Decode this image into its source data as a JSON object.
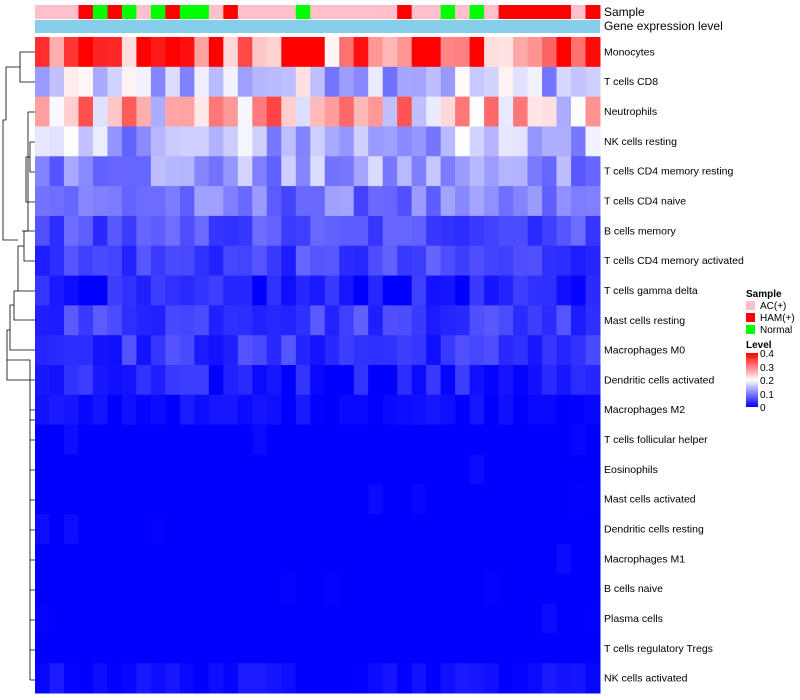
{
  "chart_data": {
    "type": "heatmap",
    "title": "",
    "annotations": {
      "sample_label": "Sample",
      "gene_label": "Gene expression level"
    },
    "sample_groups": [
      "AC",
      "AC",
      "AC",
      "HAM",
      "Normal",
      "HAM",
      "Normal",
      "AC",
      "Normal",
      "HAM",
      "Normal",
      "Normal",
      "AC",
      "HAM",
      "AC",
      "AC",
      "AC",
      "AC",
      "Normal",
      "AC",
      "AC",
      "AC",
      "AC",
      "AC",
      "AC",
      "HAM",
      "AC",
      "AC",
      "Normal",
      "AC",
      "Normal",
      "AC",
      "HAM",
      "HAM",
      "HAM",
      "HAM",
      "HAM",
      "AC",
      "HAM"
    ],
    "rows": [
      "Monocytes",
      "T cells CD8",
      "Neutrophils",
      "NK cells resting",
      "T cells CD4 memory resting",
      "T cells CD4 naive",
      "B cells memory",
      "T cells CD4 memory activated",
      "T cells gamma delta",
      "Mast cells resting",
      "Macrophages M0",
      "Dendritic cells activated",
      "Macrophages M2",
      "T cells follicular helper",
      "Eosinophils",
      "Mast cells activated",
      "Dendritic cells resting",
      "Macrophages M1",
      "B cells naive",
      "Plasma cells",
      "T cells regulatory  Tregs",
      "NK cells activated"
    ],
    "row_levels": [
      0.32,
      0.16,
      0.24,
      0.14,
      0.12,
      0.09,
      0.06,
      0.05,
      0.02,
      0.05,
      0.04,
      0.02,
      0.01,
      0.0,
      0.0,
      0.0,
      0.0,
      0.0,
      0.0,
      0.0,
      0.0,
      0.01
    ],
    "color_scale": {
      "min": 0,
      "max": 0.4,
      "low": "#0000FF",
      "mid": "#FFFFFF",
      "high": "#FF0000",
      "mid_value": 0.2
    },
    "legend": {
      "sample_title": "Sample",
      "sample_entries": [
        {
          "label": "AC(+)",
          "color": "#FFC0CB"
        },
        {
          "label": "HAM(+)",
          "color": "#FF0000"
        },
        {
          "label": "Normal",
          "color": "#00FF00"
        }
      ],
      "level_title": "Level",
      "level_ticks": [
        "0.4",
        "0.3",
        "0.2",
        "0.1",
        "0"
      ]
    },
    "gene_bar_color": "#87CEEB"
  }
}
